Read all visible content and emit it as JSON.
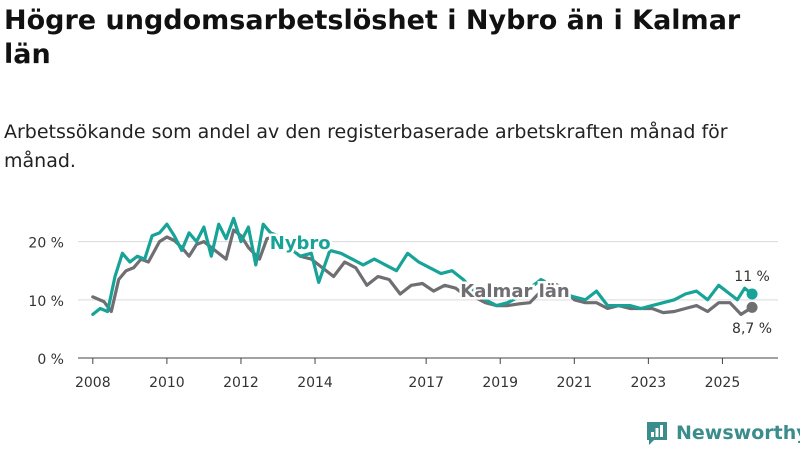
{
  "title": "Högre ungdomsarbetslöshet i Nybro än i Kalmar län",
  "subtitle": "Arbetssökande som andel av den registerbaserade arbetskraften månad för månad.",
  "brand": {
    "name": "Newsworthy",
    "color": "#3a8d8b"
  },
  "chart_data": {
    "type": "line",
    "title": "Högre ungdomsarbetslöshet i Nybro än i Kalmar län",
    "xlabel": "",
    "ylabel": "",
    "ylim": [
      0,
      22
    ],
    "xlim": [
      2007.6,
      2026.5
    ],
    "yticks": [
      0,
      10,
      20
    ],
    "ytick_labels": [
      "0 %",
      "10 %",
      "20 %"
    ],
    "xticks": [
      2008,
      2010,
      2012,
      2014,
      2017,
      2019,
      2021,
      2023,
      2025
    ],
    "xtick_labels": [
      "2008",
      "2010",
      "2012",
      "2014",
      "2017",
      "2019",
      "2021",
      "2023",
      "2025"
    ],
    "grid": true,
    "series": [
      {
        "name": "Kalmar län",
        "color": "#6f6f73",
        "end_label": "8,7 %",
        "x": [
          2008.0,
          2008.3,
          2008.5,
          2008.7,
          2008.9,
          2009.1,
          2009.3,
          2009.5,
          2009.8,
          2010.0,
          2010.2,
          2010.4,
          2010.6,
          2010.8,
          2011.0,
          2011.3,
          2011.6,
          2011.8,
          2012.0,
          2012.2,
          2012.5,
          2012.7,
          2013.0,
          2013.3,
          2013.6,
          2013.9,
          2014.2,
          2014.5,
          2014.8,
          2015.1,
          2015.4,
          2015.7,
          2016.0,
          2016.3,
          2016.6,
          2016.9,
          2017.2,
          2017.5,
          2017.8,
          2018.0,
          2018.3,
          2018.6,
          2018.9,
          2019.2,
          2019.5,
          2019.8,
          2020.1,
          2020.4,
          2020.7,
          2021.0,
          2021.3,
          2021.6,
          2021.9,
          2022.2,
          2022.5,
          2022.8,
          2023.1,
          2023.4,
          2023.7,
          2024.0,
          2024.3,
          2024.6,
          2024.9,
          2025.2,
          2025.5,
          2025.8
        ],
        "values": [
          10.5,
          9.7,
          8.0,
          13.5,
          15.0,
          15.5,
          17.0,
          16.5,
          20.0,
          20.8,
          20.2,
          19.0,
          17.5,
          19.5,
          20.0,
          18.5,
          17.0,
          22.0,
          21.0,
          19.0,
          17.0,
          20.5,
          21.0,
          19.0,
          17.5,
          17.0,
          15.5,
          14.0,
          16.5,
          15.5,
          12.5,
          14.0,
          13.5,
          11.0,
          12.5,
          12.8,
          11.5,
          12.5,
          12.0,
          11.0,
          10.5,
          9.5,
          9.0,
          9.0,
          9.3,
          9.5,
          11.5,
          13.0,
          12.0,
          10.0,
          9.5,
          9.5,
          8.5,
          9.0,
          8.5,
          8.5,
          8.5,
          7.8,
          8.0,
          8.5,
          9.0,
          8.0,
          9.5,
          9.5,
          7.5,
          8.7
        ]
      },
      {
        "name": "Nybro",
        "color": "#17a398",
        "end_label": "11 %",
        "x": [
          2008.0,
          2008.2,
          2008.4,
          2008.6,
          2008.8,
          2009.0,
          2009.2,
          2009.4,
          2009.6,
          2009.8,
          2010.0,
          2010.2,
          2010.4,
          2010.6,
          2010.8,
          2011.0,
          2011.2,
          2011.4,
          2011.6,
          2011.8,
          2012.0,
          2012.2,
          2012.4,
          2012.6,
          2012.8,
          2013.0,
          2013.3,
          2013.6,
          2013.9,
          2014.1,
          2014.4,
          2014.7,
          2015.0,
          2015.3,
          2015.6,
          2015.9,
          2016.2,
          2016.5,
          2016.8,
          2017.1,
          2017.4,
          2017.7,
          2018.0,
          2018.3,
          2018.6,
          2018.9,
          2019.2,
          2019.5,
          2019.8,
          2020.1,
          2020.4,
          2020.7,
          2021.0,
          2021.3,
          2021.6,
          2021.9,
          2022.2,
          2022.5,
          2022.8,
          2023.1,
          2023.4,
          2023.7,
          2024.0,
          2024.3,
          2024.6,
          2024.9,
          2025.2,
          2025.4,
          2025.6,
          2025.8
        ],
        "values": [
          7.5,
          8.5,
          8.0,
          14.0,
          18.0,
          16.5,
          17.5,
          17.0,
          21.0,
          21.5,
          23.0,
          21.0,
          18.5,
          21.5,
          20.0,
          22.5,
          17.5,
          23.0,
          20.5,
          24.0,
          20.0,
          22.5,
          16.0,
          23.0,
          21.5,
          21.0,
          19.0,
          17.5,
          18.0,
          13.0,
          18.5,
          18.0,
          17.0,
          16.0,
          17.0,
          16.0,
          15.0,
          18.0,
          16.5,
          15.5,
          14.5,
          15.0,
          13.5,
          11.5,
          10.0,
          9.0,
          9.5,
          10.5,
          12.0,
          13.5,
          12.5,
          11.0,
          10.5,
          10.0,
          11.5,
          9.0,
          9.0,
          9.0,
          8.5,
          9.0,
          9.5,
          10.0,
          11.0,
          11.5,
          10.0,
          12.5,
          11.0,
          10.0,
          12.0,
          11.0
        ]
      }
    ],
    "annotations": [
      {
        "text": "Nybro",
        "series": "Nybro",
        "x": 2013.6,
        "y": 18.7
      },
      {
        "text": "Kalmar län",
        "series": "Kalmar län",
        "x": 2019.4,
        "y": 10.5
      }
    ]
  }
}
